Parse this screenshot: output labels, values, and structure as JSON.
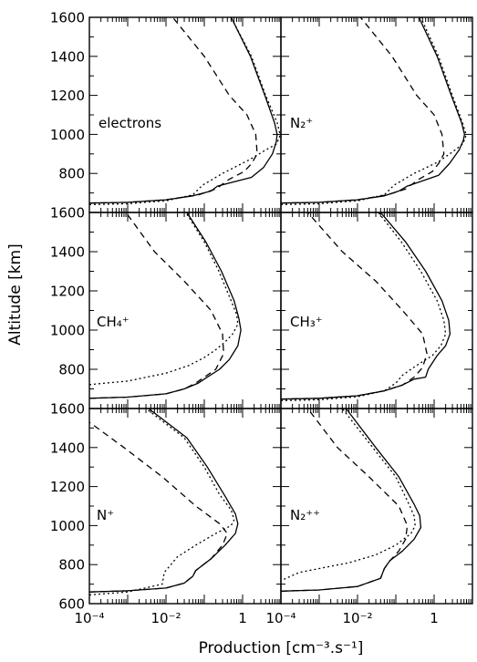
{
  "chart_data": {
    "type": "line",
    "xlabel": "Production [cm⁻³.s⁻¹]",
    "ylabel": "Altitude [km]",
    "x_scale": "log",
    "xlim": [
      0.0001,
      10
    ],
    "ylim": [
      600,
      1600
    ],
    "x_tick_labels": [
      "10⁻⁴",
      "10⁻²",
      "1"
    ],
    "y_tick_labels_top_row": [
      "800",
      "1000",
      "1200",
      "1400",
      "1600"
    ],
    "y_tick_labels_middle_row": [
      "800",
      "1000",
      "1200",
      "1400",
      "1600"
    ],
    "y_tick_labels_bottom_row": [
      "600",
      "800",
      "1000",
      "1200",
      "1400",
      "1600"
    ],
    "grid": false,
    "line_styles": [
      "solid",
      "dotted",
      "dashed"
    ],
    "panels": [
      {
        "label": "electrons",
        "series": [
          {
            "style": "solid",
            "x": [
              0.0001,
              0.001,
              0.01,
              0.05,
              0.15,
              0.22,
              1.7,
              3.5,
              6.0,
              7.5,
              8.0,
              6.8,
              3.8,
              1.6,
              0.5,
              0.22
            ],
            "y": [
              648,
              652,
              665,
              685,
              710,
              735,
              780,
              830,
              900,
              960,
              1000,
              1060,
              1200,
              1400,
              1600,
              1700
            ]
          },
          {
            "style": "dotted",
            "x": [
              0.0001,
              0.001,
              0.01,
              0.05,
              0.09,
              0.3,
              1.5,
              4.0,
              7.5,
              9.0,
              9.5,
              8.0,
              4.0,
              1.7,
              0.5
            ],
            "y": [
              640,
              645,
              660,
              690,
              740,
              800,
              870,
              920,
              950,
              980,
              1000,
              1060,
              1200,
              1400,
              1600
            ]
          },
          {
            "style": "dashed",
            "x": [
              0.0001,
              0.001,
              0.01,
              0.07,
              0.2,
              0.45,
              1.1,
              1.7,
              2.4,
              2.2,
              1.3,
              0.45,
              0.1,
              0.015
            ],
            "y": [
              648,
              652,
              665,
              690,
              720,
              770,
              810,
              850,
              900,
              1000,
              1100,
              1200,
              1400,
              1600
            ]
          }
        ]
      },
      {
        "label": "N₂⁺",
        "series": [
          {
            "style": "solid",
            "x": [
              0.0001,
              0.001,
              0.01,
              0.05,
              0.12,
              0.2,
              1.3,
              2.5,
              4.5,
              5.8,
              6.2,
              5.2,
              2.8,
              1.2,
              0.4
            ],
            "y": [
              648,
              652,
              665,
              685,
              710,
              735,
              790,
              850,
              920,
              970,
              1000,
              1060,
              1200,
              1400,
              1600
            ]
          },
          {
            "style": "dotted",
            "x": [
              0.0001,
              0.001,
              0.01,
              0.05,
              0.09,
              0.3,
              1.3,
              3.0,
              5.5,
              6.5,
              6.8,
              5.5,
              3.0,
              1.3,
              0.45
            ],
            "y": [
              640,
              645,
              660,
              690,
              740,
              800,
              860,
              910,
              950,
              980,
              1000,
              1060,
              1200,
              1400,
              1600
            ]
          },
          {
            "style": "dashed",
            "x": [
              0.0001,
              0.001,
              0.01,
              0.06,
              0.18,
              0.4,
              0.9,
              1.3,
              1.8,
              1.6,
              1.0,
              0.35,
              0.08,
              0.012
            ],
            "y": [
              648,
              652,
              665,
              690,
              720,
              770,
              810,
              850,
              900,
              1000,
              1100,
              1200,
              1400,
              1600
            ]
          }
        ]
      },
      {
        "label": "CH₄⁺",
        "series": [
          {
            "style": "solid",
            "x": [
              0.0001,
              0.001,
              0.01,
              0.03,
              0.07,
              0.12,
              0.25,
              0.45,
              0.75,
              0.9,
              0.8,
              0.6,
              0.28,
              0.11,
              0.035
            ],
            "y": [
              652,
              658,
              675,
              700,
              730,
              760,
              800,
              850,
              920,
              1000,
              1060,
              1150,
              1300,
              1450,
              1600
            ]
          },
          {
            "style": "dotted",
            "x": [
              0.0001,
              0.001,
              0.01,
              0.04,
              0.1,
              0.2,
              0.35,
              0.55,
              0.75,
              0.7,
              0.5,
              0.24,
              0.1,
              0.033
            ],
            "y": [
              722,
              740,
              780,
              820,
              860,
              900,
              940,
              980,
              1030,
              1080,
              1150,
              1300,
              1450,
              1600
            ]
          },
          {
            "style": "dashed",
            "x": [
              0.0001,
              0.001,
              0.01,
              0.03,
              0.06,
              0.1,
              0.2,
              0.32,
              0.3,
              0.15,
              0.03,
              0.005,
              0.0009
            ],
            "y": [
              652,
              658,
              675,
              700,
              730,
              760,
              800,
              880,
              980,
              1100,
              1250,
              1400,
              1600
            ]
          }
        ]
      },
      {
        "label": "CH₃⁺",
        "series": [
          {
            "style": "solid",
            "x": [
              0.0001,
              0.001,
              0.01,
              0.05,
              0.15,
              0.3,
              0.6,
              0.7,
              1.2,
              2.0,
              2.6,
              2.4,
              1.6,
              0.6,
              0.18,
              0.04
            ],
            "y": [
              648,
              652,
              665,
              690,
              720,
              750,
              760,
              800,
              870,
              920,
              980,
              1050,
              1150,
              1300,
              1450,
              1600
            ]
          },
          {
            "style": "dotted",
            "x": [
              0.0001,
              0.001,
              0.01,
              0.05,
              0.1,
              0.15,
              0.35,
              0.9,
              1.5,
              2.0,
              1.8,
              1.2,
              0.45,
              0.14,
              0.035
            ],
            "y": [
              640,
              645,
              660,
              690,
              730,
              770,
              820,
              870,
              920,
              980,
              1050,
              1150,
              1300,
              1450,
              1600
            ]
          },
          {
            "style": "dashed",
            "x": [
              0.0001,
              0.001,
              0.01,
              0.05,
              0.15,
              0.3,
              0.5,
              0.65,
              0.5,
              0.15,
              0.03,
              0.004,
              0.0005
            ],
            "y": [
              648,
              652,
              665,
              690,
              720,
              760,
              810,
              880,
              980,
              1100,
              1250,
              1400,
              1600
            ]
          }
        ]
      },
      {
        "label": "N⁺",
        "series": [
          {
            "style": "solid",
            "x": [
              0.0001,
              0.001,
              0.01,
              0.03,
              0.05,
              0.06,
              0.15,
              0.35,
              0.65,
              0.75,
              0.65,
              0.35,
              0.12,
              0.035,
              0.0035
            ],
            "y": [
              660,
              666,
              680,
              705,
              740,
              770,
              830,
              900,
              960,
              1010,
              1060,
              1150,
              1300,
              1450,
              1600
            ]
          },
          {
            "style": "dotted",
            "x": [
              0.0001,
              0.001,
              0.008,
              0.009,
              0.02,
              0.06,
              0.2,
              0.5,
              0.6,
              0.5,
              0.25,
              0.1,
              0.03,
              0.003
            ],
            "y": [
              645,
              660,
              700,
              760,
              840,
              900,
              960,
              1000,
              1030,
              1080,
              1160,
              1300,
              1450,
              1600
            ]
          },
          {
            "style": "dashed",
            "x": [
              0.0001,
              0.001,
              0.01,
              0.03,
              0.05,
              0.06,
              0.15,
              0.3,
              0.4,
              0.25,
              0.06,
              0.008,
              0.0008,
              0.0001
            ],
            "y": [
              660,
              666,
              680,
              705,
              740,
              770,
              830,
              900,
              960,
              1010,
              1100,
              1250,
              1400,
              1530
            ]
          }
        ]
      },
      {
        "label": "N₂⁺⁺",
        "series": [
          {
            "style": "solid",
            "x": [
              0.0001,
              0.001,
              0.01,
              0.04,
              0.05,
              0.07,
              0.15,
              0.3,
              0.45,
              0.42,
              0.3,
              0.12,
              0.03,
              0.005
            ],
            "y": [
              664,
              670,
              688,
              730,
              780,
              820,
              870,
              930,
              990,
              1050,
              1110,
              1250,
              1400,
              1600
            ]
          },
          {
            "style": "dotted",
            "x": [
              0.00012,
              0.0003,
              0.001,
              0.006,
              0.03,
              0.1,
              0.25,
              0.32,
              0.3,
              0.22,
              0.1,
              0.025,
              0.004
            ],
            "y": [
              725,
              760,
              780,
              810,
              850,
              900,
              960,
              1000,
              1050,
              1110,
              1250,
              1400,
              1600
            ]
          },
          {
            "style": "dashed",
            "x": [
              0.0001,
              0.001,
              0.01,
              0.04,
              0.05,
              0.07,
              0.12,
              0.18,
              0.2,
              0.12,
              0.02,
              0.003,
              0.0005
            ],
            "y": [
              664,
              670,
              688,
              730,
              780,
              820,
              870,
              930,
              1000,
              1100,
              1250,
              1400,
              1600
            ]
          }
        ]
      }
    ]
  }
}
